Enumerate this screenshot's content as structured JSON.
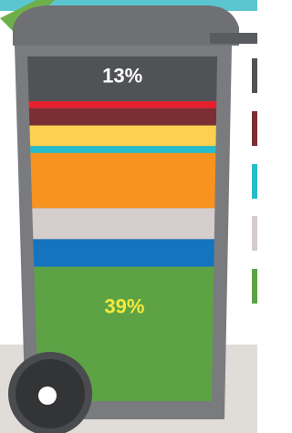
{
  "chart_data": {
    "type": "stacked-bin",
    "values": [
      13,
      2,
      5,
      6,
      2,
      16,
      9,
      8,
      39
    ],
    "colors": [
      "#505256",
      "#e8202e",
      "#7b2e33",
      "#fdd04f",
      "#26bccb",
      "#f7931e",
      "#d5cdcb",
      "#1673be",
      "#5da345"
    ],
    "value_labels": [
      "13%",
      null,
      null,
      null,
      null,
      null,
      null,
      null,
      "39%"
    ],
    "label_colors": [
      "#ffffff",
      null,
      null,
      null,
      null,
      null,
      null,
      null,
      "#f5e93a"
    ]
  }
}
